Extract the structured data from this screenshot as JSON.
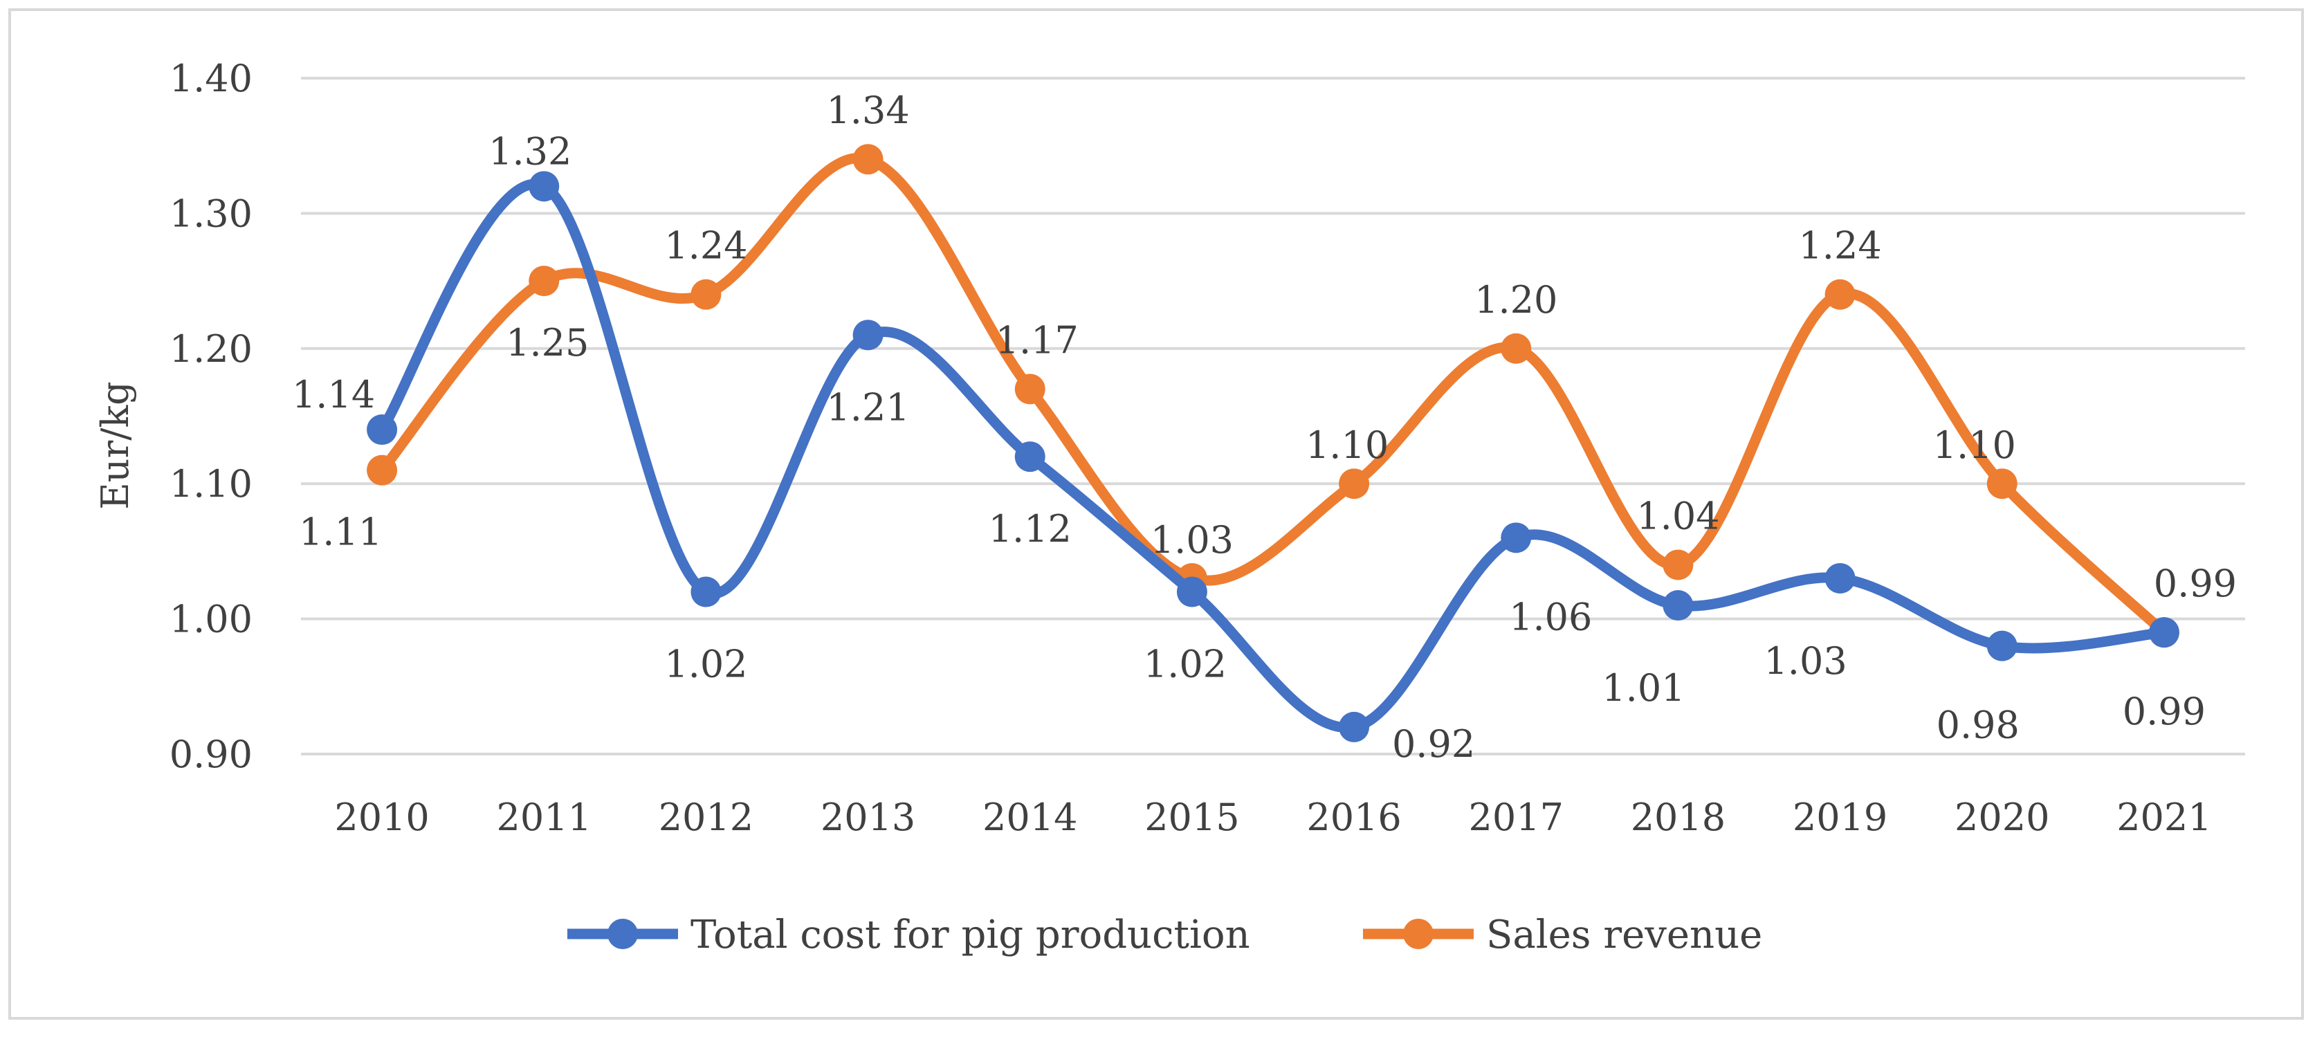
{
  "chart_data": {
    "type": "line",
    "categories": [
      "2010",
      "2011",
      "2012",
      "2013",
      "2014",
      "2015",
      "2016",
      "2017",
      "2018",
      "2019",
      "2020",
      "2021"
    ],
    "series": [
      {
        "name": "Total cost for pig production",
        "color": "#4472C4",
        "values": [
          1.14,
          1.32,
          1.02,
          1.21,
          1.12,
          1.02,
          0.92,
          1.06,
          1.01,
          1.03,
          0.98,
          0.99
        ],
        "labels": [
          "1.14",
          "1.32",
          "1.02",
          "1.21",
          "1.12",
          "1.02",
          "0.92",
          "1.06",
          "1.01",
          "1.03",
          "0.98",
          "0.99"
        ]
      },
      {
        "name": "Sales revenue",
        "color": "#ED7D31",
        "values": [
          1.11,
          1.25,
          1.24,
          1.34,
          1.17,
          1.03,
          1.1,
          1.2,
          1.04,
          1.24,
          1.1,
          0.99
        ],
        "labels": [
          "1.11",
          "1.25",
          "1.24",
          "1.34",
          "1.17",
          "1.03",
          "1.10",
          "1.20",
          "1.04",
          "1.24",
          "1.10",
          "0.99"
        ]
      }
    ],
    "ylabel": "Eur/kg",
    "ylim": [
      0.9,
      1.4
    ],
    "yticks": [
      "0.90",
      "1.00",
      "1.10",
      "1.20",
      "1.30",
      "1.40"
    ],
    "grid": true,
    "smooth": true,
    "legend_position": "bottom-center"
  }
}
